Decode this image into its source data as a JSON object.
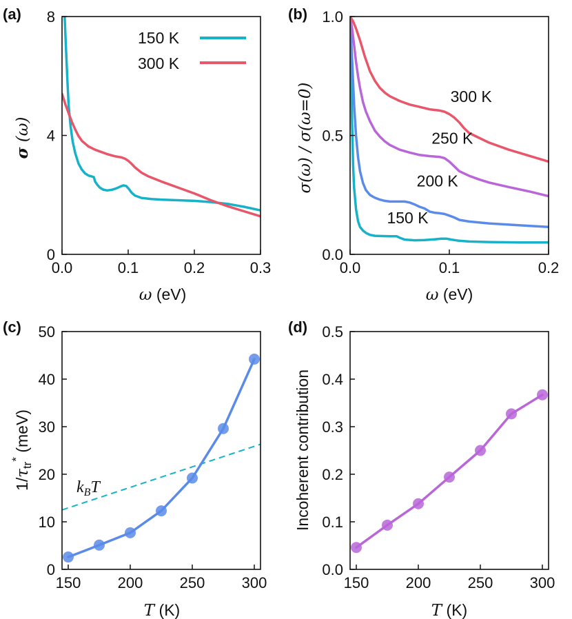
{
  "figure": {
    "panels": [
      {
        "id": "a",
        "label": "(a)"
      },
      {
        "id": "b",
        "label": "(b)"
      },
      {
        "id": "c",
        "label": "(c)"
      },
      {
        "id": "d",
        "label": "(d)"
      }
    ]
  },
  "chart_data": [
    {
      "panel": "(a)",
      "type": "line",
      "xlabel_symbol": "ω",
      "xlabel_unit": " (eV)",
      "ylabel_symbol": "σ",
      "ylabel_arg": " (ω)",
      "xlim": [
        0,
        0.3
      ],
      "ylim": [
        0,
        8
      ],
      "xticks": [
        "0.0",
        "0.1",
        "0.2",
        "0.3"
      ],
      "xtick_values": [
        0,
        0.1,
        0.2,
        0.3
      ],
      "yticks": [
        "0",
        "4",
        "8"
      ],
      "ytick_values": [
        0,
        4,
        8
      ],
      "legend_position": "top-right",
      "series": [
        {
          "name": "150 K",
          "color": "#18B2C8",
          "x": [
            0.004,
            0.006,
            0.008,
            0.01,
            0.013,
            0.016,
            0.02,
            0.025,
            0.03,
            0.035,
            0.04,
            0.045,
            0.048,
            0.05,
            0.053,
            0.057,
            0.062,
            0.068,
            0.075,
            0.082,
            0.088,
            0.093,
            0.097,
            0.101,
            0.105,
            0.11,
            0.12,
            0.135,
            0.15,
            0.175,
            0.2,
            0.225,
            0.25,
            0.275,
            0.3
          ],
          "y": [
            8.0,
            6.9,
            5.9,
            5.0,
            4.3,
            3.8,
            3.4,
            3.05,
            2.85,
            2.72,
            2.65,
            2.62,
            2.6,
            2.45,
            2.35,
            2.25,
            2.18,
            2.15,
            2.17,
            2.22,
            2.28,
            2.32,
            2.3,
            2.2,
            2.08,
            1.98,
            1.9,
            1.86,
            1.84,
            1.82,
            1.8,
            1.76,
            1.7,
            1.6,
            1.48
          ]
        },
        {
          "name": "300 K",
          "color": "#E8566A",
          "x": [
            0.0,
            0.005,
            0.01,
            0.015,
            0.02,
            0.025,
            0.03,
            0.04,
            0.05,
            0.06,
            0.07,
            0.08,
            0.09,
            0.095,
            0.1,
            0.105,
            0.11,
            0.12,
            0.13,
            0.15,
            0.175,
            0.2,
            0.225,
            0.25,
            0.275,
            0.3
          ],
          "y": [
            5.4,
            5.05,
            4.75,
            4.45,
            4.2,
            3.98,
            3.82,
            3.63,
            3.52,
            3.44,
            3.36,
            3.3,
            3.26,
            3.22,
            3.15,
            3.05,
            2.93,
            2.75,
            2.63,
            2.45,
            2.25,
            2.05,
            1.82,
            1.62,
            1.45,
            1.28
          ]
        }
      ]
    },
    {
      "panel": "(b)",
      "type": "line",
      "xlabel_symbol": "ω",
      "xlabel_unit": " (eV)",
      "ylabel": "σ(ω) / σ(ω=0)",
      "xlim": [
        0,
        0.2
      ],
      "ylim": [
        0,
        1.0
      ],
      "xticks": [
        "0.0",
        "0.1",
        "0.2"
      ],
      "xtick_values": [
        0,
        0.1,
        0.2
      ],
      "yticks": [
        "0.0",
        "0.5",
        "1.0"
      ],
      "ytick_values": [
        0,
        0.5,
        1.0
      ],
      "series": [
        {
          "name": "150 K",
          "color": "#18B2C8",
          "x": [
            0.0,
            0.001,
            0.002,
            0.003,
            0.004,
            0.006,
            0.008,
            0.01,
            0.013,
            0.016,
            0.02,
            0.025,
            0.03,
            0.04,
            0.047,
            0.05,
            0.055,
            0.065,
            0.075,
            0.085,
            0.092,
            0.097,
            0.102,
            0.11,
            0.12,
            0.14,
            0.17,
            0.2
          ],
          "y": [
            1.0,
            0.8,
            0.55,
            0.38,
            0.28,
            0.19,
            0.14,
            0.115,
            0.1,
            0.09,
            0.082,
            0.078,
            0.077,
            0.076,
            0.076,
            0.07,
            0.062,
            0.059,
            0.06,
            0.063,
            0.066,
            0.066,
            0.062,
            0.057,
            0.054,
            0.052,
            0.05,
            0.05
          ]
        },
        {
          "name": "200 K",
          "color": "#5B8BE8",
          "x": [
            0.0,
            0.002,
            0.004,
            0.006,
            0.008,
            0.01,
            0.013,
            0.016,
            0.02,
            0.025,
            0.03,
            0.035,
            0.04,
            0.045,
            0.05,
            0.055,
            0.06,
            0.065,
            0.07,
            0.075,
            0.08,
            0.085,
            0.09,
            0.095,
            0.1,
            0.105,
            0.11,
            0.12,
            0.14,
            0.16,
            0.18,
            0.2
          ],
          "y": [
            1.0,
            0.82,
            0.63,
            0.5,
            0.41,
            0.35,
            0.3,
            0.27,
            0.25,
            0.238,
            0.23,
            0.225,
            0.222,
            0.222,
            0.222,
            0.222,
            0.218,
            0.21,
            0.2,
            0.193,
            0.18,
            0.175,
            0.173,
            0.17,
            0.163,
            0.155,
            0.145,
            0.138,
            0.13,
            0.125,
            0.12,
            0.115
          ]
        },
        {
          "name": "250 K",
          "color": "#B966D8",
          "x": [
            0.0,
            0.002,
            0.004,
            0.006,
            0.008,
            0.01,
            0.013,
            0.016,
            0.02,
            0.025,
            0.03,
            0.035,
            0.04,
            0.05,
            0.06,
            0.07,
            0.08,
            0.09,
            0.095,
            0.1,
            0.105,
            0.11,
            0.12,
            0.13,
            0.14,
            0.16,
            0.18,
            0.2
          ],
          "y": [
            1.0,
            0.95,
            0.88,
            0.81,
            0.75,
            0.7,
            0.64,
            0.6,
            0.56,
            0.52,
            0.495,
            0.475,
            0.46,
            0.44,
            0.428,
            0.418,
            0.413,
            0.41,
            0.405,
            0.39,
            0.37,
            0.35,
            0.33,
            0.315,
            0.302,
            0.283,
            0.265,
            0.245
          ]
        },
        {
          "name": "300 K",
          "color": "#E8566A",
          "x": [
            0.0,
            0.003,
            0.006,
            0.01,
            0.015,
            0.02,
            0.025,
            0.03,
            0.035,
            0.04,
            0.05,
            0.06,
            0.07,
            0.08,
            0.09,
            0.095,
            0.1,
            0.105,
            0.11,
            0.115,
            0.12,
            0.13,
            0.14,
            0.16,
            0.18,
            0.2
          ],
          "y": [
            1.0,
            0.98,
            0.95,
            0.9,
            0.83,
            0.77,
            0.73,
            0.7,
            0.68,
            0.665,
            0.645,
            0.63,
            0.62,
            0.61,
            0.605,
            0.6,
            0.59,
            0.575,
            0.555,
            0.53,
            0.51,
            0.49,
            0.47,
            0.44,
            0.415,
            0.39
          ]
        }
      ],
      "curve_labels": [
        {
          "text": "300 K",
          "x": 0.122,
          "y": 0.64
        },
        {
          "text": "250 K",
          "x": 0.103,
          "y": 0.465
        },
        {
          "text": "200 K",
          "x": 0.088,
          "y": 0.285
        },
        {
          "text": "150 K",
          "x": 0.058,
          "y": 0.13
        }
      ]
    },
    {
      "panel": "(c)",
      "type": "line",
      "xlabel_symbol": "T",
      "xlabel_unit": " (K)",
      "ylabel_pre": "1/",
      "ylabel_tau": "τ",
      "ylabel_sub": "tr",
      "ylabel_sup": "*",
      "ylabel_unit": " (meV)",
      "xlim": [
        145,
        305
      ],
      "ylim": [
        0,
        50
      ],
      "xticks": [
        "150",
        "200",
        "250",
        "300"
      ],
      "xtick_values": [
        150,
        200,
        250,
        300
      ],
      "yticks": [
        "0",
        "10",
        "20",
        "30",
        "40",
        "50"
      ],
      "ytick_values": [
        0,
        10,
        20,
        30,
        40,
        50
      ],
      "series": [
        {
          "name": "1/τtr*",
          "color": "#5B8BE8",
          "markers": true,
          "x": [
            150,
            175,
            200,
            225,
            250,
            275,
            300
          ],
          "y": [
            2.6,
            5.1,
            7.7,
            12.3,
            19.2,
            29.6,
            44.2
          ]
        }
      ],
      "reference_line": {
        "label_k": "k",
        "label_sub": "B",
        "label_T": "T",
        "color": "#18B2C8",
        "style": "dashed",
        "x": [
          145,
          305
        ],
        "y": [
          12.5,
          26.3
        ]
      }
    },
    {
      "panel": "(d)",
      "type": "line",
      "xlabel_symbol": "T",
      "xlabel_unit": " (K)",
      "ylabel": "Incoherent contribution",
      "xlim": [
        145,
        305
      ],
      "ylim": [
        0,
        0.5
      ],
      "xticks": [
        "150",
        "200",
        "250",
        "300"
      ],
      "xtick_values": [
        150,
        200,
        250,
        300
      ],
      "yticks": [
        "0.0",
        "0.1",
        "0.2",
        "0.3",
        "0.4",
        "0.5"
      ],
      "ytick_values": [
        0,
        0.1,
        0.2,
        0.3,
        0.4,
        0.5
      ],
      "series": [
        {
          "name": "Incoherent contribution",
          "color": "#B966D8",
          "markers": true,
          "x": [
            150,
            175,
            200,
            225,
            250,
            275,
            300
          ],
          "y": [
            0.046,
            0.093,
            0.138,
            0.194,
            0.25,
            0.327,
            0.367
          ]
        }
      ]
    }
  ]
}
